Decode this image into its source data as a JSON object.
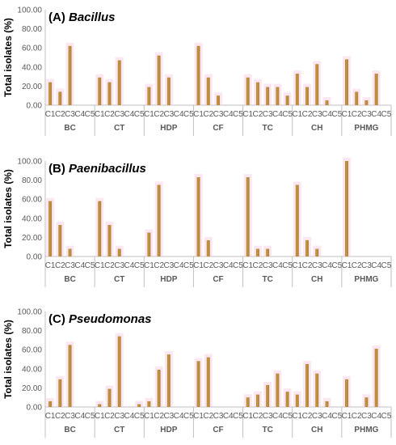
{
  "chart_data": [
    {
      "type": "bar",
      "title_prefix": "(A) ",
      "title_name": "Bacillus",
      "ylabel": "Total isolates (%)",
      "ylim": [
        0,
        100
      ],
      "yticks": [
        "0.00",
        "20.00",
        "40.00",
        "60.00",
        "80.00",
        "100.00"
      ],
      "groups": [
        "BC",
        "CT",
        "HDP",
        "CF",
        "TC",
        "CH",
        "PHMG"
      ],
      "categories": [
        "C1",
        "C2",
        "C3",
        "C4",
        "C5"
      ],
      "values": [
        [
          24,
          14,
          62,
          0,
          0
        ],
        [
          29,
          24,
          47,
          0,
          0
        ],
        [
          19,
          52,
          29,
          0,
          0
        ],
        [
          62,
          29,
          10,
          0,
          0
        ],
        [
          29,
          24,
          19,
          19,
          10
        ],
        [
          33,
          19,
          43,
          5,
          0
        ],
        [
          48,
          14,
          5,
          33,
          0
        ]
      ]
    },
    {
      "type": "bar",
      "title_prefix": "(B) ",
      "title_name": "Paenibacillus",
      "ylabel": "Total isolates (%)",
      "ylim": [
        0,
        100
      ],
      "yticks": [
        "0.00",
        "20.00",
        "40.00",
        "60.00",
        "80.00",
        "100.00"
      ],
      "groups": [
        "BC",
        "CT",
        "HDP",
        "CF",
        "TC",
        "CH",
        "PHMG"
      ],
      "categories": [
        "C1",
        "C2",
        "C3",
        "C4",
        "C5"
      ],
      "values": [
        [
          58,
          33,
          8,
          0,
          0
        ],
        [
          58,
          33,
          8,
          0,
          0
        ],
        [
          25,
          75,
          0,
          0,
          0
        ],
        [
          83,
          17,
          0,
          0,
          0
        ],
        [
          83,
          8,
          8,
          0,
          0
        ],
        [
          75,
          17,
          8,
          0,
          0
        ],
        [
          100,
          0,
          0,
          0,
          0
        ]
      ]
    },
    {
      "type": "bar",
      "title_prefix": "(C) ",
      "title_name": "Pseudomonas",
      "ylabel": "Total isolates (%)",
      "ylim": [
        0,
        100
      ],
      "yticks": [
        "0.00",
        "20.00",
        "40.00",
        "60.00",
        "80.00",
        "100.00"
      ],
      "groups": [
        "BC",
        "CT",
        "HDP",
        "CF",
        "TC",
        "CH",
        "PHMG"
      ],
      "categories": [
        "C1",
        "C2",
        "C3",
        "C4",
        "C5"
      ],
      "values": [
        [
          6,
          29,
          65,
          0,
          0
        ],
        [
          3,
          19,
          74,
          0,
          3
        ],
        [
          6,
          39,
          55,
          0,
          0
        ],
        [
          48,
          52,
          0,
          0,
          0
        ],
        [
          10,
          13,
          23,
          35,
          16
        ],
        [
          13,
          45,
          35,
          6,
          0
        ],
        [
          29,
          0,
          10,
          61,
          0
        ]
      ]
    }
  ],
  "colors": {
    "bar": "#b8893a",
    "bar_highlight": "#c9a04a",
    "glow": "#f7d3e6",
    "axis": "#bfbfbf",
    "text": "#595959"
  }
}
